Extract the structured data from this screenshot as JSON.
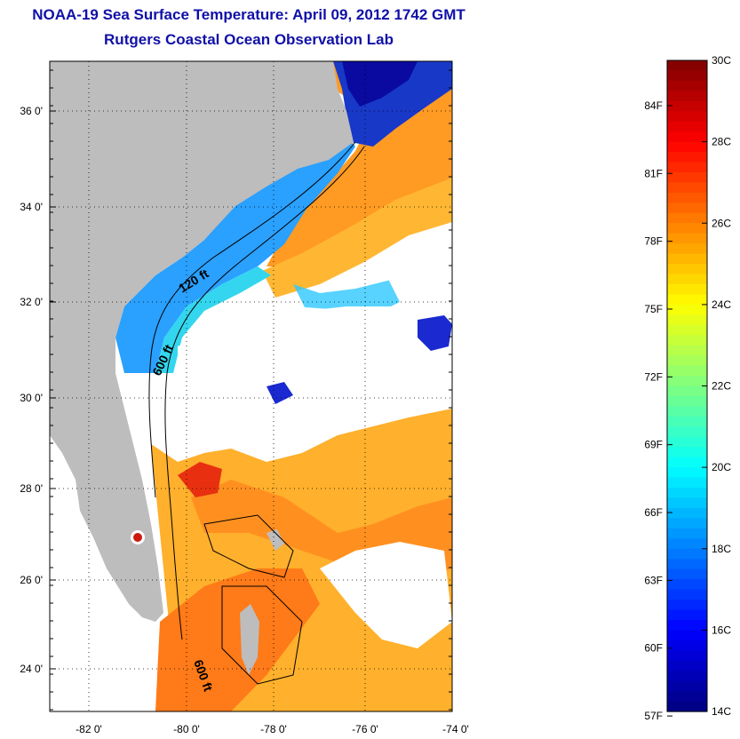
{
  "title": "NOAA-19 Sea Surface Temperature:  April 09, 2012 1742 GMT",
  "subtitle": "Rutgers Coastal Ocean Observation Lab",
  "map": {
    "lat_ticks": [
      "36 0'",
      "34 0'",
      "32 0'",
      "30 0'",
      "28 0'",
      "26 0'",
      "24 0'"
    ],
    "lon_ticks": [
      "-82 0'",
      "-80 0'",
      "-78 0'",
      "-76 0'",
      "-74 0'"
    ],
    "depth_labels": [
      "120 ft",
      "600 ft",
      "600 ft"
    ],
    "colors": {
      "land": "#bdbdbd",
      "cloud": "#ffffff",
      "grid": "#000000"
    }
  },
  "colorbar": {
    "celsius_labels": [
      "30C",
      "28C",
      "26C",
      "24C",
      "22C",
      "20C",
      "18C",
      "16C",
      "14C"
    ],
    "fahrenheit_labels": [
      "84F",
      "81F",
      "78F",
      "75F",
      "72F",
      "69F",
      "66F",
      "63F",
      "60F",
      "57F"
    ],
    "range_c": [
      14,
      30
    ],
    "colormap": "jet"
  }
}
